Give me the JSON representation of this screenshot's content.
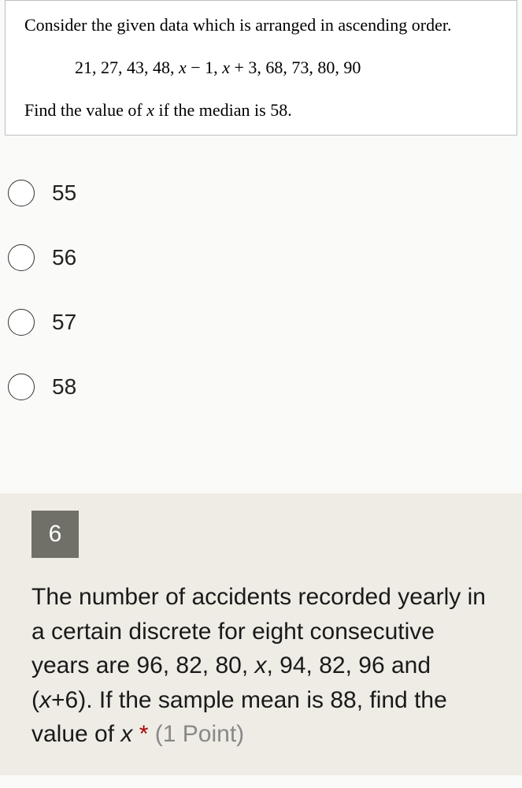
{
  "question1": {
    "intro": "Consider the given data which is arranged in ascending order.",
    "data_pre": "21, 27, 43, 48, ",
    "data_x1a": "x",
    "data_x1b": " − 1, ",
    "data_x2a": "x",
    "data_x2b": " + 3, 68, 73, 80, 90",
    "ask_pre": "Find the value of ",
    "ask_var": "x",
    "ask_post": " if the median is 58.",
    "box": {
      "border_color": "#bfbfbf",
      "bg": "#ffffff",
      "font": "Times New Roman",
      "fontsize": 22
    }
  },
  "options": {
    "items": [
      {
        "label": "55"
      },
      {
        "label": "56"
      },
      {
        "label": "57"
      },
      {
        "label": "58"
      }
    ],
    "radio": {
      "size": 34,
      "border_color": "#333333"
    },
    "fontsize": 28
  },
  "question2": {
    "number": "6",
    "text_parts": {
      "p1": "The number of accidents recorded yearly in a certain discrete for eight consecutive years are 96, 82, 80, ",
      "x1": "x",
      "p2": ", 94, 82, 96 and (",
      "x2": "x",
      "p3": "+6). If the sample mean is 88, find the value of ",
      "x3": "x",
      "star": " *",
      "points": "  (1 Point)"
    },
    "panel": {
      "bg": "#eeece5",
      "num_bg": "#707068",
      "num_color": "#ffffff",
      "fontsize": 30,
      "star_color": "#aa0000",
      "points_color": "#888888"
    }
  }
}
